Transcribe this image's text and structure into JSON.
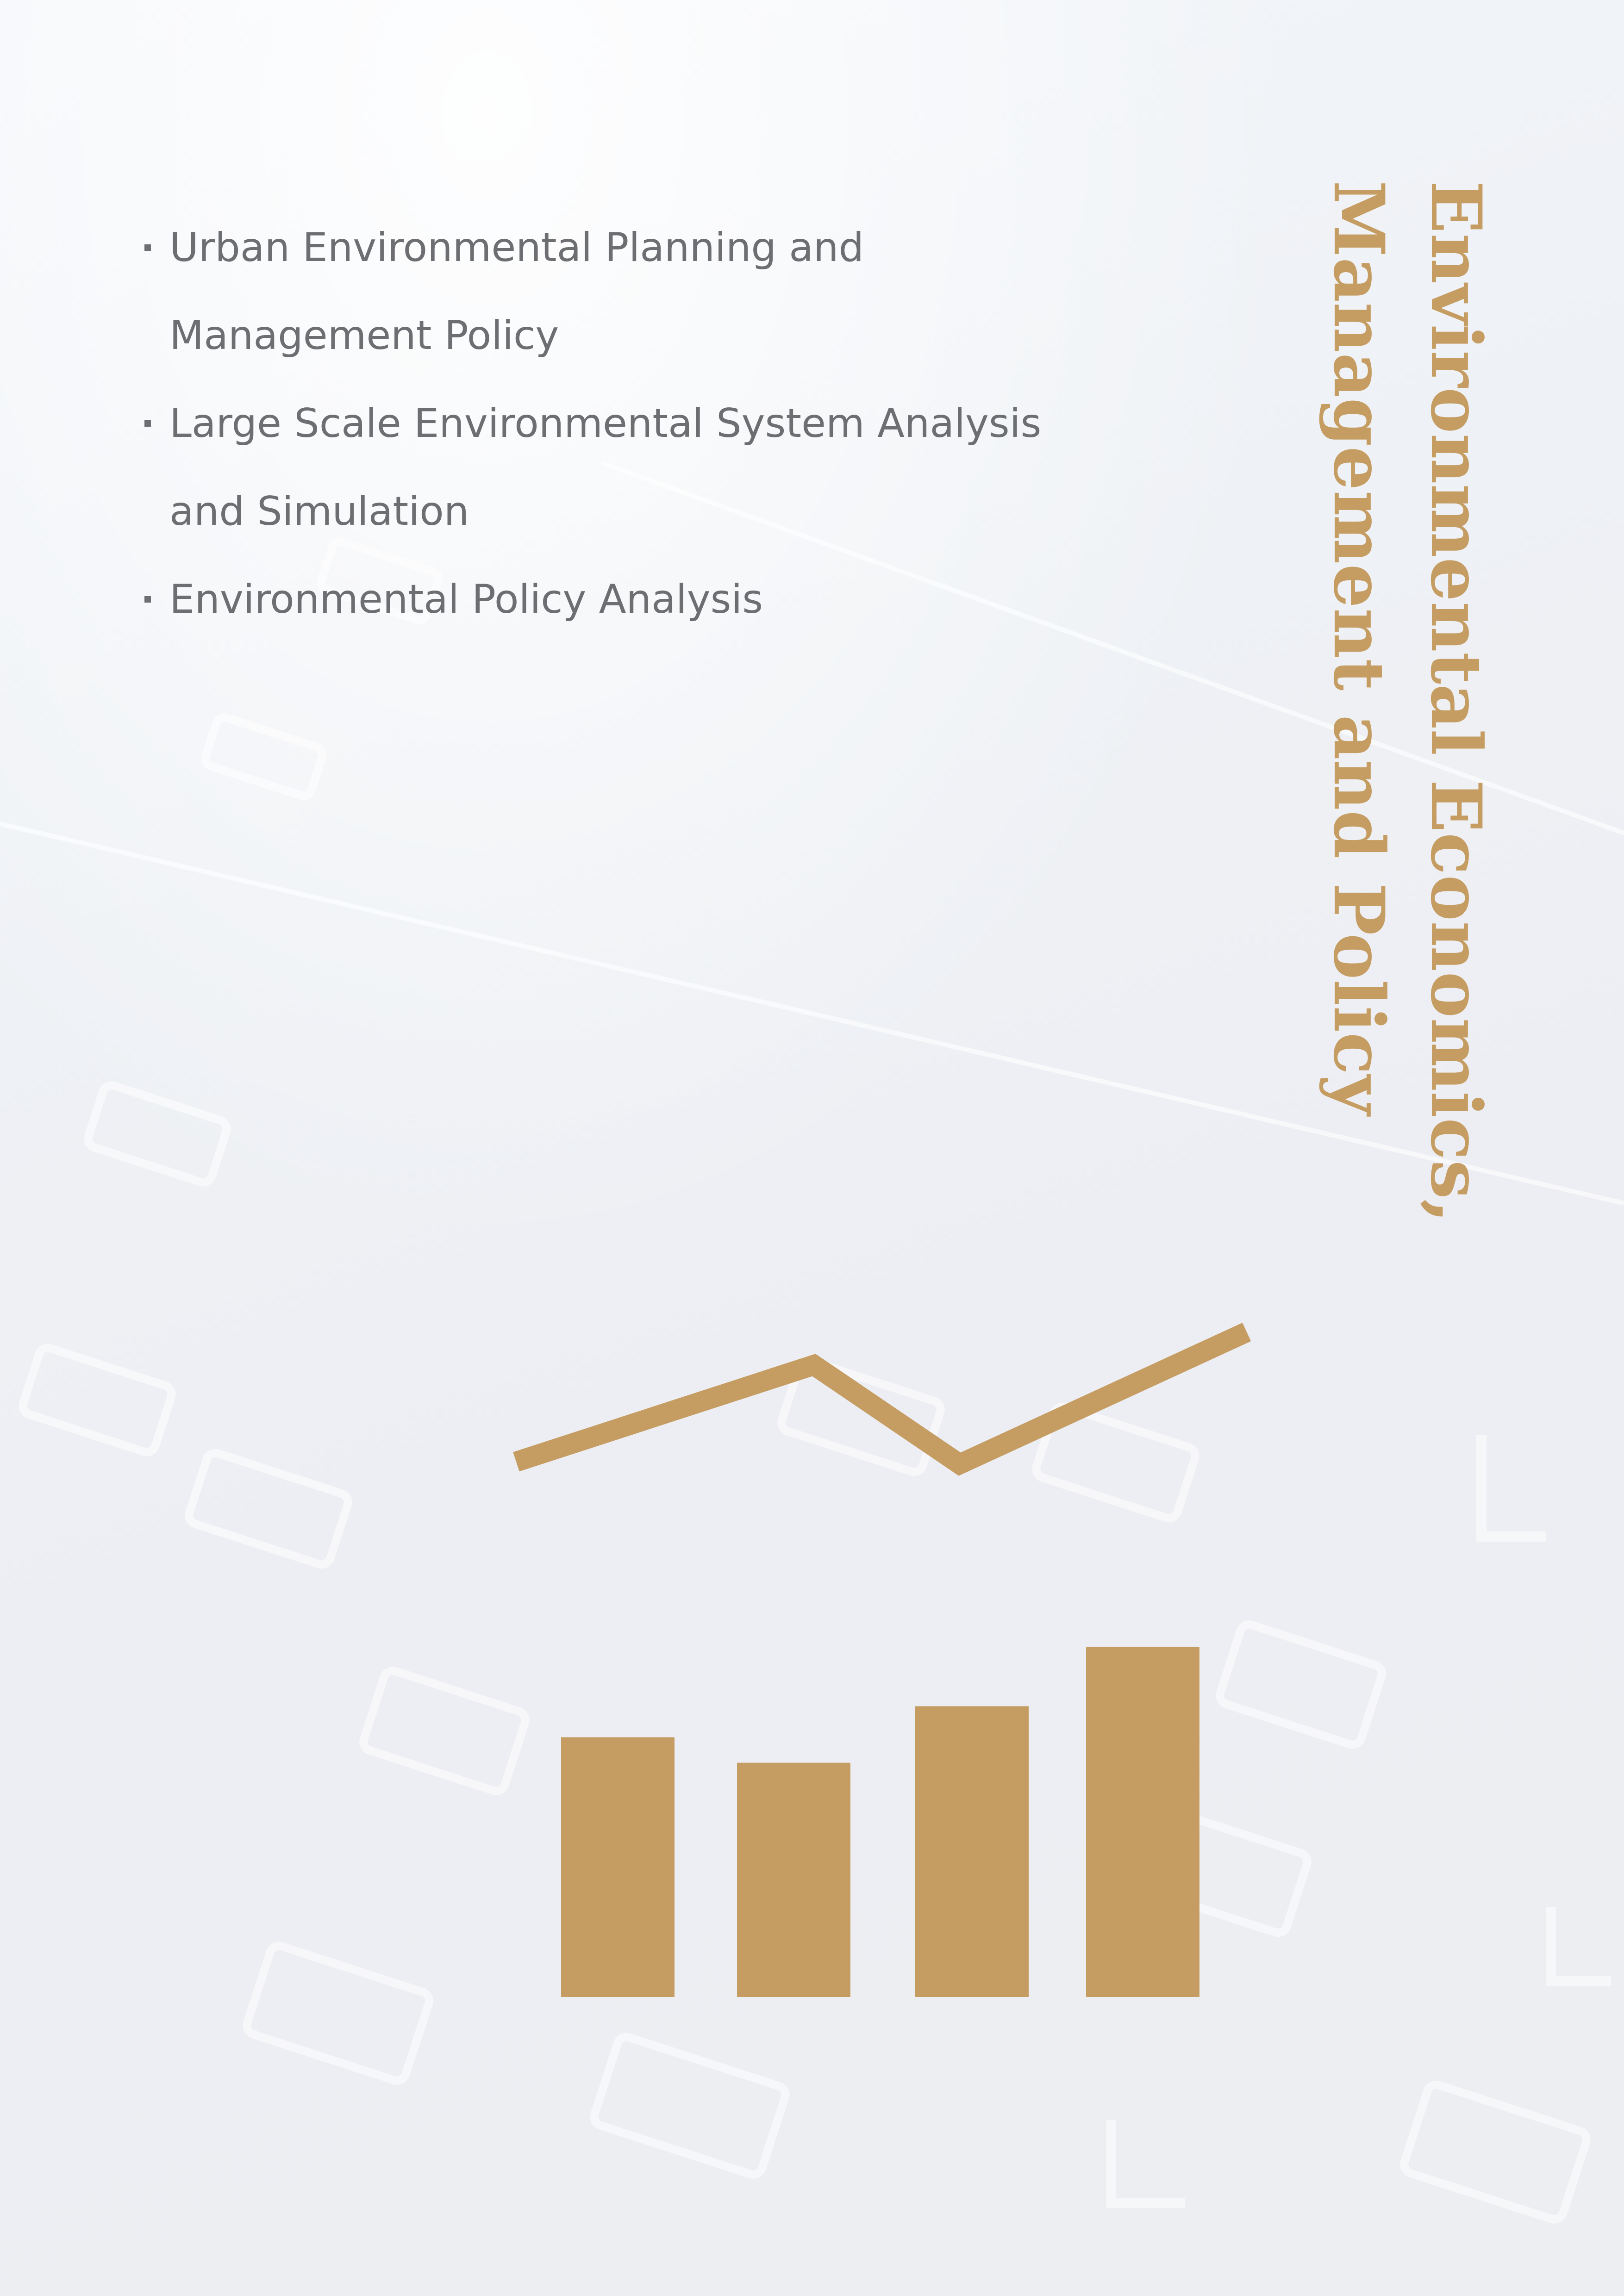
{
  "bullets": [
    {
      "lines": [
        "Urban Environmental Planning and",
        "Management Policy"
      ]
    },
    {
      "lines": [
        "Large Scale Environmental System Analysis",
        "and Simulation"
      ]
    },
    {
      "lines": [
        "Environmental Policy Analysis"
      ]
    }
  ],
  "title": {
    "line1": "Environmental Economics,",
    "line2": "Management and Policy"
  },
  "colors": {
    "accent": "#c59d62",
    "text": "#6d6e72",
    "background": "#eef0f4"
  },
  "icons": {
    "chart_graphic": "bar-chart-with-trend-line-icon"
  },
  "chart_data": {
    "type": "bar",
    "values": [
      0.92,
      0.83,
      1.03,
      1.24
    ],
    "trend": [
      0.45,
      0.86,
      0.44,
      1.0
    ]
  }
}
